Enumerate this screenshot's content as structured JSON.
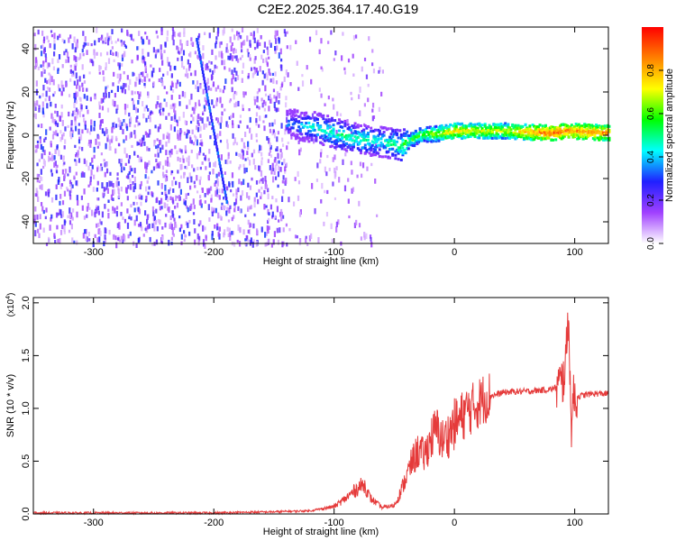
{
  "page": {
    "title": "C2E2.2025.364.17.40.G19"
  },
  "chart_data": [
    {
      "type": "heatmap",
      "xlabel": "Height of straight line (km)",
      "ylabel": "Frequency (Hz)",
      "xlim": [
        -350,
        128
      ],
      "ylim": [
        -50,
        50
      ],
      "x_ticks": [
        -300,
        -200,
        -100,
        0,
        100
      ],
      "y_ticks": [
        -40,
        -20,
        0,
        20,
        40
      ],
      "colorbar": {
        "label": "Normalized spectral amplitude",
        "range": [
          0,
          1
        ],
        "ticks": [
          "0.0",
          "0.2",
          "0.4",
          "0.6",
          "0.8"
        ],
        "colormap": [
          "#ffffff",
          "#a040ff",
          "#2020ff",
          "#00ffff",
          "#00ff00",
          "#ffff00",
          "#ff8000",
          "#ff0000"
        ]
      },
      "features": {
        "noise_region_x": [
          -350,
          -140
        ],
        "signal_ridge": [
          {
            "x": -140,
            "y": 5,
            "amp": 0.35
          },
          {
            "x": -120,
            "y": 4,
            "amp": 0.45
          },
          {
            "x": -100,
            "y": 1,
            "amp": 0.5
          },
          {
            "x": -80,
            "y": -2,
            "amp": 0.5
          },
          {
            "x": -60,
            "y": -3,
            "amp": 0.45
          },
          {
            "x": -45,
            "y": -5,
            "amp": 0.55
          },
          {
            "x": -30,
            "y": 0,
            "amp": 0.6
          },
          {
            "x": -10,
            "y": 1,
            "amp": 0.7
          },
          {
            "x": 0,
            "y": 2,
            "amp": 0.75
          },
          {
            "x": 40,
            "y": 2,
            "amp": 0.7
          },
          {
            "x": 80,
            "y": 1,
            "amp": 0.9
          },
          {
            "x": 95,
            "y": 2,
            "amp": 0.85
          },
          {
            "x": 128,
            "y": 1,
            "amp": 0.85
          }
        ],
        "slanted_streak": {
          "x_start": -215,
          "y_start": 45,
          "x_end": -190,
          "y_end": -30
        }
      }
    },
    {
      "type": "line",
      "xlabel": "Height of straight line (km)",
      "ylabel": "SNR (10 * v/v)",
      "y_multiplier": "(x10",
      "y_multiplier_exp": "4",
      "xlim": [
        -350,
        128
      ],
      "ylim": [
        0,
        2.05
      ],
      "x_ticks": [
        -300,
        -200,
        -100,
        0,
        100
      ],
      "y_ticks": [
        "0.0",
        "0.5",
        "1.0",
        "1.5",
        "2.0"
      ],
      "color": "#e53a3a",
      "series": [
        {
          "x": [
            -350,
            -300,
            -250,
            -200,
            -150,
            -120,
            -100,
            -90,
            -80,
            -75,
            -70,
            -60,
            -50,
            -45,
            -40,
            -35,
            -30,
            -25,
            -20,
            -15,
            -10,
            -5,
            0,
            5,
            10,
            15,
            20,
            25,
            30,
            35,
            40,
            50,
            60,
            70,
            80,
            85,
            90,
            93,
            95,
            96,
            97,
            98,
            100,
            105,
            110,
            115,
            120,
            128
          ],
          "y": [
            0.01,
            0.01,
            0.01,
            0.01,
            0.02,
            0.03,
            0.07,
            0.15,
            0.25,
            0.28,
            0.15,
            0.06,
            0.08,
            0.2,
            0.35,
            0.5,
            0.6,
            0.55,
            0.7,
            0.8,
            0.7,
            0.75,
            0.85,
            0.9,
            0.98,
            1.0,
            1.05,
            1.1,
            1.12,
            1.13,
            1.15,
            1.16,
            1.16,
            1.17,
            1.18,
            1.2,
            1.25,
            1.5,
            2.0,
            1.3,
            0.8,
            1.05,
            1.1,
            1.12,
            1.13,
            1.14,
            1.14,
            1.14
          ]
        }
      ]
    }
  ]
}
